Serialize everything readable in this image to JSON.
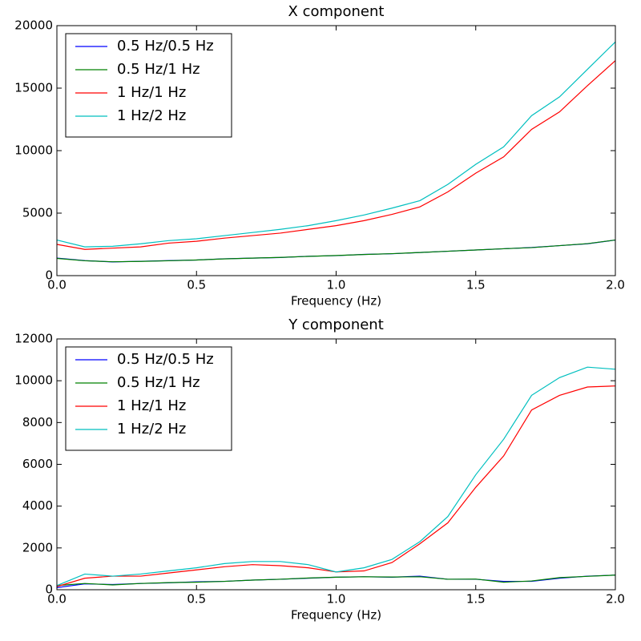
{
  "chart_data": [
    {
      "type": "line",
      "title": "X component",
      "xlabel": "Frequency (Hz)",
      "x": [
        0,
        0.1,
        0.2,
        0.3,
        0.4,
        0.5,
        0.6,
        0.7,
        0.8,
        0.9,
        1.0,
        1.1,
        1.2,
        1.3,
        1.4,
        1.5,
        1.6,
        1.7,
        1.8,
        1.9,
        2.0
      ],
      "xlim": [
        0,
        2
      ],
      "xticks": [
        {
          "value": 0,
          "label": "0.0"
        },
        0.5,
        {
          "value": 1,
          "label": "1.0"
        },
        1.5,
        {
          "value": 2,
          "label": "2.0"
        }
      ],
      "ylim": [
        0,
        20000
      ],
      "yticks": [
        0,
        5000,
        10000,
        15000,
        20000
      ],
      "legend": "upper left",
      "series": [
        {
          "name": "0.5 Hz/0.5 Hz",
          "color": "#0000ff",
          "values": [
            1400,
            1200,
            1100,
            1150,
            1200,
            1250,
            1350,
            1400,
            1450,
            1550,
            1600,
            1700,
            1750,
            1850,
            1950,
            2050,
            2150,
            2250,
            2400,
            2550,
            2850
          ]
        },
        {
          "name": "0.5 Hz/1 Hz",
          "color": "#008000",
          "values": [
            1380,
            1190,
            1110,
            1140,
            1190,
            1250,
            1340,
            1400,
            1460,
            1540,
            1610,
            1690,
            1760,
            1850,
            1950,
            2050,
            2150,
            2240,
            2400,
            2560,
            2850
          ]
        },
        {
          "name": "1 Hz/1 Hz",
          "color": "#ff0000",
          "values": [
            2500,
            2100,
            2200,
            2300,
            2600,
            2750,
            3000,
            3200,
            3400,
            3700,
            4000,
            4400,
            4900,
            5500,
            6700,
            8200,
            9500,
            11700,
            13100,
            15200,
            17200
          ]
        },
        {
          "name": "1 Hz/2 Hz",
          "color": "#00bfbf",
          "values": [
            2850,
            2300,
            2350,
            2550,
            2800,
            2950,
            3200,
            3450,
            3700,
            4000,
            4400,
            4850,
            5400,
            6000,
            7300,
            8900,
            10300,
            12800,
            14300,
            16500,
            18700
          ]
        }
      ]
    },
    {
      "type": "line",
      "title": "Y component",
      "xlabel": "Frequency (Hz)",
      "x": [
        0,
        0.1,
        0.2,
        0.3,
        0.4,
        0.5,
        0.6,
        0.7,
        0.8,
        0.9,
        1.0,
        1.1,
        1.2,
        1.3,
        1.4,
        1.5,
        1.6,
        1.7,
        1.8,
        1.9,
        2.0
      ],
      "xlim": [
        0,
        2
      ],
      "xticks": [
        {
          "value": 0,
          "label": "0.0"
        },
        0.5,
        {
          "value": 1,
          "label": "1.0"
        },
        1.5,
        {
          "value": 2,
          "label": "2.0"
        }
      ],
      "ylim": [
        0,
        12000
      ],
      "yticks": [
        0,
        2000,
        4000,
        6000,
        8000,
        10000,
        12000
      ],
      "legend": "upper left",
      "series": [
        {
          "name": "0.5 Hz/0.5 Hz",
          "color": "#0000ff",
          "values": [
            100,
            280,
            250,
            300,
            330,
            380,
            400,
            460,
            500,
            550,
            600,
            620,
            600,
            650,
            500,
            500,
            400,
            400,
            550,
            650,
            700
          ]
        },
        {
          "name": "0.5 Hz/1 Hz",
          "color": "#008000",
          "values": [
            200,
            300,
            230,
            300,
            340,
            360,
            400,
            460,
            500,
            560,
            600,
            620,
            610,
            620,
            500,
            510,
            360,
            420,
            580,
            640,
            700
          ]
        },
        {
          "name": "1 Hz/1 Hz",
          "color": "#ff0000",
          "values": [
            150,
            550,
            650,
            650,
            800,
            950,
            1100,
            1200,
            1150,
            1050,
            850,
            900,
            1300,
            2200,
            3200,
            4900,
            6400,
            8600,
            9300,
            9700,
            9750
          ]
        },
        {
          "name": "1 Hz/2 Hz",
          "color": "#00bfbf",
          "values": [
            200,
            750,
            650,
            750,
            900,
            1050,
            1250,
            1350,
            1350,
            1200,
            850,
            1050,
            1450,
            2300,
            3500,
            5500,
            7200,
            9300,
            10150,
            10650,
            10550
          ]
        }
      ]
    }
  ]
}
